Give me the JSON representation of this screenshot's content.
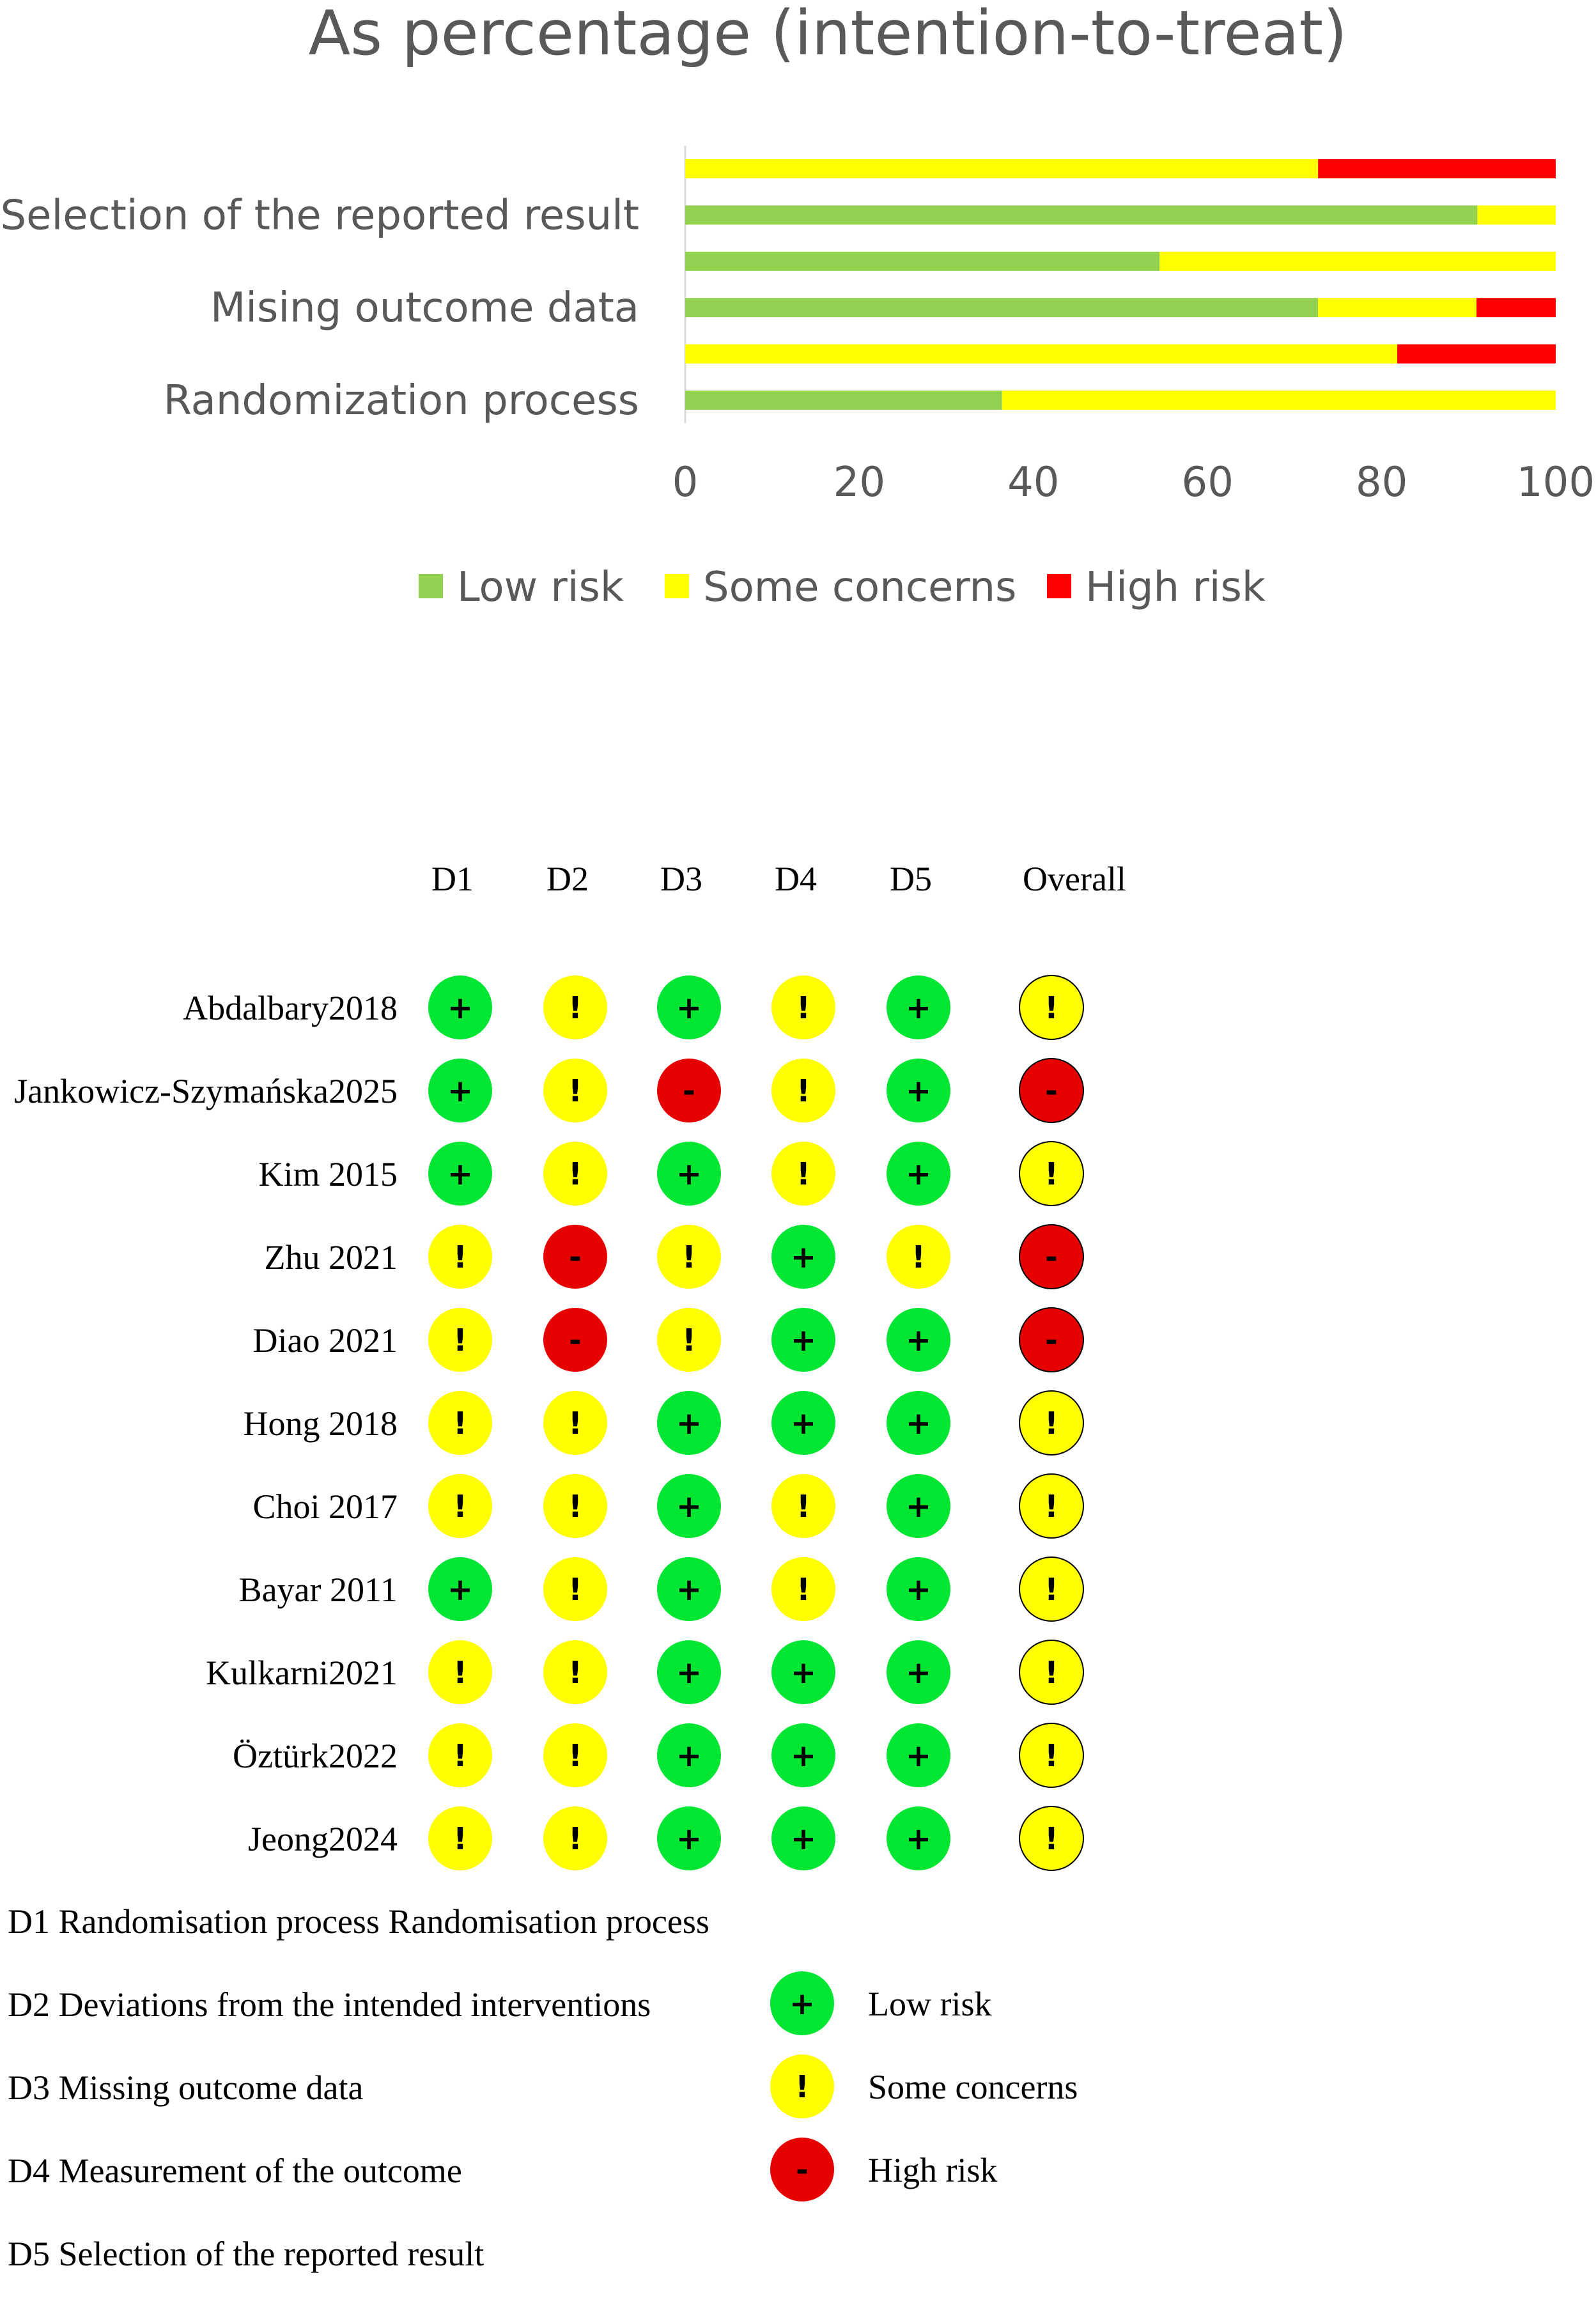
{
  "colors": {
    "low": "#92d050",
    "some": "#ffff00",
    "high": "#ff0000",
    "dot_low": "#00e632",
    "dot_some": "#ffff00",
    "dot_high": "#e60000",
    "text_gray": "#595959"
  },
  "chart_data": [
    {
      "type": "bar",
      "orientation": "horizontal",
      "stacked": true,
      "title": "As percentage (intention-to-treat)",
      "categories": [
        "",
        "Selection of the reported result",
        "",
        "Mising outcome data",
        "",
        "Randomization process"
      ],
      "series": [
        {
          "name": "Low risk",
          "color": "#92d050",
          "values": [
            0,
            91,
            54.5,
            72.7,
            0,
            36.4
          ]
        },
        {
          "name": "Some concerns",
          "color": "#ffff00",
          "values": [
            72.7,
            9,
            45.5,
            18.2,
            81.8,
            63.6
          ]
        },
        {
          "name": "High risk",
          "color": "#ff0000",
          "values": [
            27.3,
            0,
            0,
            9.1,
            18.2,
            0
          ]
        }
      ],
      "xlim": [
        0,
        100
      ],
      "xticks": [
        "0",
        "20",
        "40",
        "60",
        "80",
        "100"
      ],
      "grid": false,
      "legend": "bottom"
    },
    {
      "type": "table",
      "columns": [
        "D1",
        "D2",
        "D3",
        "D4",
        "D5",
        "Overall"
      ],
      "rows": [
        {
          "study": "Abdalbary2018",
          "judgements": [
            "low",
            "some",
            "low",
            "some",
            "low",
            "some"
          ]
        },
        {
          "study": "Jankowicz-Szymańska2025",
          "judgements": [
            "low",
            "some",
            "high",
            "some",
            "low",
            "high"
          ]
        },
        {
          "study": "Kim 2015",
          "judgements": [
            "low",
            "some",
            "low",
            "some",
            "low",
            "some"
          ]
        },
        {
          "study": "Zhu 2021",
          "judgements": [
            "some",
            "high",
            "some",
            "low",
            "some",
            "high"
          ]
        },
        {
          "study": "Diao 2021",
          "judgements": [
            "some",
            "high",
            "some",
            "low",
            "low",
            "high"
          ]
        },
        {
          "study": "Hong 2018",
          "judgements": [
            "some",
            "some",
            "low",
            "low",
            "low",
            "some"
          ]
        },
        {
          "study": "Choi 2017",
          "judgements": [
            "some",
            "some",
            "low",
            "some",
            "low",
            "some"
          ]
        },
        {
          "study": "Bayar 2011",
          "judgements": [
            "low",
            "some",
            "low",
            "some",
            "low",
            "some"
          ]
        },
        {
          "study": "Kulkarni2021",
          "judgements": [
            "some",
            "some",
            "low",
            "low",
            "low",
            "some"
          ]
        },
        {
          "study": "Öztürk2022",
          "judgements": [
            "some",
            "some",
            "low",
            "low",
            "low",
            "some"
          ]
        },
        {
          "study": "Jeong2024",
          "judgements": [
            "some",
            "some",
            "low",
            "low",
            "low",
            "some"
          ]
        }
      ],
      "symbols": {
        "low": "+",
        "some": "!",
        "high": "-"
      },
      "domain_key": [
        "D1 Randomisation process Randomisation process",
        "D2 Deviations from the intended interventions",
        "D3 Missing outcome data",
        "D4 Measurement of the outcome",
        "D5 Selection of the reported result"
      ],
      "judgement_legend": [
        {
          "key": "low",
          "label": "Low risk"
        },
        {
          "key": "some",
          "label": "Some concerns"
        },
        {
          "key": "high",
          "label": "High risk"
        }
      ]
    }
  ]
}
